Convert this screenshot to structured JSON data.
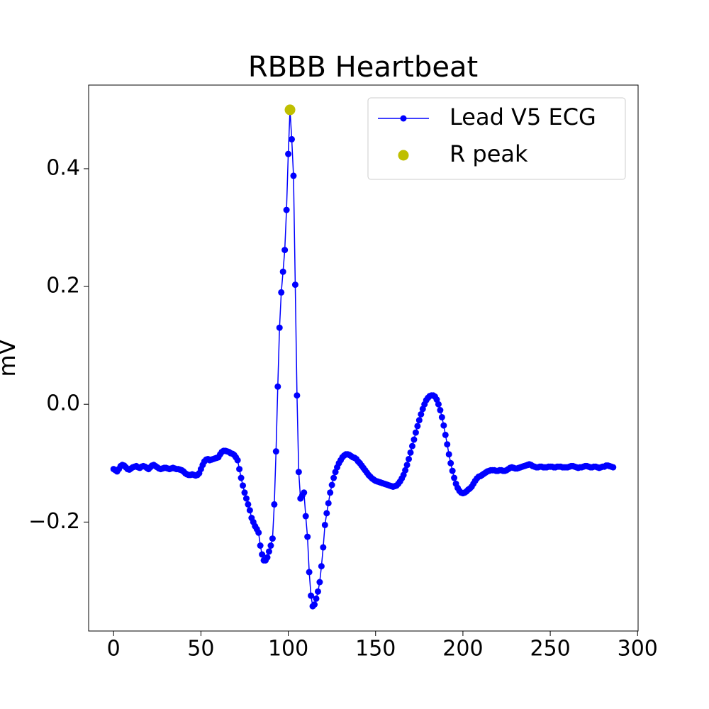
{
  "chart_data": {
    "type": "line",
    "title": "RBBB Heartbeat",
    "ylabel": "mV",
    "xlim": [
      -14.3,
      300.3
    ],
    "ylim": [
      -0.385,
      0.542
    ],
    "xticks": [
      0,
      50,
      100,
      150,
      200,
      250,
      300
    ],
    "yticks": [
      {
        "value": -0.2,
        "label": "−0.2"
      },
      {
        "value": 0,
        "label": "0.0"
      },
      0.2,
      0.4
    ],
    "legend": "upper right",
    "series": [
      {
        "name": "Lead V5 ECG",
        "color": "#0000ff",
        "marker": "o",
        "x": [
          0,
          1,
          2,
          3,
          4,
          5,
          6,
          7,
          8,
          9,
          10,
          11,
          12,
          13,
          14,
          15,
          16,
          17,
          18,
          19,
          20,
          21,
          22,
          23,
          24,
          25,
          26,
          27,
          28,
          29,
          30,
          31,
          32,
          33,
          34,
          35,
          36,
          37,
          38,
          39,
          40,
          41,
          42,
          43,
          44,
          45,
          46,
          47,
          48,
          49,
          50,
          51,
          52,
          53,
          54,
          55,
          56,
          57,
          58,
          59,
          60,
          61,
          62,
          63,
          64,
          65,
          66,
          67,
          68,
          69,
          70,
          71,
          72,
          73,
          74,
          75,
          76,
          77,
          78,
          79,
          80,
          81,
          82,
          83,
          84,
          85,
          86,
          87,
          88,
          89,
          90,
          91,
          92,
          93,
          94,
          95,
          96,
          97,
          98,
          99,
          100,
          101,
          102,
          103,
          104,
          105,
          106,
          107,
          108,
          109,
          110,
          111,
          112,
          113,
          114,
          115,
          116,
          117,
          118,
          119,
          120,
          121,
          122,
          123,
          124,
          125,
          126,
          127,
          128,
          129,
          130,
          131,
          132,
          133,
          134,
          135,
          136,
          137,
          138,
          139,
          140,
          141,
          142,
          143,
          144,
          145,
          146,
          147,
          148,
          149,
          150,
          151,
          152,
          153,
          154,
          155,
          156,
          157,
          158,
          159,
          160,
          161,
          162,
          163,
          164,
          165,
          166,
          167,
          168,
          169,
          170,
          171,
          172,
          173,
          174,
          175,
          176,
          177,
          178,
          179,
          180,
          181,
          182,
          183,
          184,
          185,
          186,
          187,
          188,
          189,
          190,
          191,
          192,
          193,
          194,
          195,
          196,
          197,
          198,
          199,
          200,
          201,
          202,
          203,
          204,
          205,
          206,
          207,
          208,
          209,
          210,
          211,
          212,
          213,
          214,
          215,
          216,
          217,
          218,
          219,
          220,
          221,
          222,
          223,
          224,
          225,
          226,
          227,
          228,
          229,
          230,
          231,
          232,
          233,
          234,
          235,
          236,
          237,
          238,
          239,
          240,
          241,
          242,
          243,
          244,
          245,
          246,
          247,
          248,
          249,
          250,
          251,
          252,
          253,
          254,
          255,
          256,
          257,
          258,
          259,
          260,
          261,
          262,
          263,
          264,
          265,
          266,
          267,
          268,
          269,
          270,
          271,
          272,
          273,
          274,
          275,
          276,
          277,
          278,
          279,
          280,
          281,
          282,
          283,
          284,
          285,
          286
        ],
        "values": [
          -0.11,
          -0.112,
          -0.114,
          -0.11,
          -0.105,
          -0.103,
          -0.104,
          -0.107,
          -0.11,
          -0.111,
          -0.109,
          -0.107,
          -0.106,
          -0.105,
          -0.107,
          -0.108,
          -0.106,
          -0.105,
          -0.106,
          -0.108,
          -0.11,
          -0.107,
          -0.104,
          -0.103,
          -0.105,
          -0.107,
          -0.109,
          -0.11,
          -0.109,
          -0.108,
          -0.108,
          -0.109,
          -0.11,
          -0.109,
          -0.108,
          -0.109,
          -0.11,
          -0.11,
          -0.111,
          -0.112,
          -0.114,
          -0.117,
          -0.119,
          -0.12,
          -0.12,
          -0.119,
          -0.12,
          -0.121,
          -0.12,
          -0.117,
          -0.11,
          -0.103,
          -0.097,
          -0.094,
          -0.093,
          -0.095,
          -0.094,
          -0.093,
          -0.092,
          -0.091,
          -0.09,
          -0.085,
          -0.081,
          -0.079,
          -0.079,
          -0.08,
          -0.081,
          -0.083,
          -0.084,
          -0.086,
          -0.09,
          -0.095,
          -0.11,
          -0.125,
          -0.138,
          -0.15,
          -0.16,
          -0.17,
          -0.18,
          -0.193,
          -0.2,
          -0.207,
          -0.212,
          -0.218,
          -0.24,
          -0.255,
          -0.265,
          -0.265,
          -0.26,
          -0.25,
          -0.24,
          -0.228,
          -0.17,
          -0.08,
          0.03,
          0.13,
          0.19,
          0.225,
          0.262,
          0.33,
          0.425,
          0.5,
          0.45,
          0.388,
          0.203,
          0.015,
          -0.115,
          -0.16,
          -0.155,
          -0.15,
          -0.19,
          -0.225,
          -0.285,
          -0.325,
          -0.343,
          -0.34,
          -0.33,
          -0.318,
          -0.302,
          -0.275,
          -0.243,
          -0.205,
          -0.185,
          -0.168,
          -0.15,
          -0.137,
          -0.125,
          -0.115,
          -0.107,
          -0.1,
          -0.095,
          -0.09,
          -0.087,
          -0.085,
          -0.085,
          -0.086,
          -0.088,
          -0.09,
          -0.091,
          -0.093,
          -0.097,
          -0.1,
          -0.104,
          -0.108,
          -0.112,
          -0.116,
          -0.12,
          -0.123,
          -0.126,
          -0.128,
          -0.13,
          -0.131,
          -0.132,
          -0.133,
          -0.134,
          -0.135,
          -0.136,
          -0.137,
          -0.138,
          -0.139,
          -0.14,
          -0.139,
          -0.138,
          -0.135,
          -0.131,
          -0.126,
          -0.12,
          -0.112,
          -0.103,
          -0.093,
          -0.082,
          -0.071,
          -0.06,
          -0.048,
          -0.037,
          -0.027,
          -0.017,
          -0.008,
          0.0,
          0.007,
          0.011,
          0.014,
          0.015,
          0.015,
          0.013,
          0.008,
          0.0,
          -0.01,
          -0.022,
          -0.036,
          -0.052,
          -0.068,
          -0.085,
          -0.1,
          -0.113,
          -0.125,
          -0.135,
          -0.142,
          -0.147,
          -0.15,
          -0.151,
          -0.15,
          -0.148,
          -0.145,
          -0.143,
          -0.14,
          -0.135,
          -0.13,
          -0.126,
          -0.123,
          -0.122,
          -0.12,
          -0.118,
          -0.116,
          -0.114,
          -0.113,
          -0.112,
          -0.112,
          -0.112,
          -0.113,
          -0.113,
          -0.112,
          -0.112,
          -0.113,
          -0.113,
          -0.112,
          -0.11,
          -0.108,
          -0.107,
          -0.108,
          -0.109,
          -0.109,
          -0.108,
          -0.107,
          -0.106,
          -0.105,
          -0.104,
          -0.103,
          -0.102,
          -0.103,
          -0.105,
          -0.106,
          -0.107,
          -0.107,
          -0.106,
          -0.106,
          -0.107,
          -0.107,
          -0.107,
          -0.106,
          -0.106,
          -0.106,
          -0.107,
          -0.107,
          -0.106,
          -0.106,
          -0.106,
          -0.107,
          -0.107,
          -0.107,
          -0.107,
          -0.106,
          -0.105,
          -0.105,
          -0.106,
          -0.107,
          -0.108,
          -0.107,
          -0.107,
          -0.106,
          -0.105,
          -0.105,
          -0.106,
          -0.107,
          -0.107,
          -0.106,
          -0.106,
          -0.107,
          -0.108,
          -0.107,
          -0.106,
          -0.106,
          -0.104,
          -0.104,
          -0.105,
          -0.106,
          -0.107
        ]
      },
      {
        "name": "R peak",
        "color": "#bfbf00",
        "marker": "o",
        "x": [
          101
        ],
        "values": [
          0.5
        ]
      }
    ]
  }
}
